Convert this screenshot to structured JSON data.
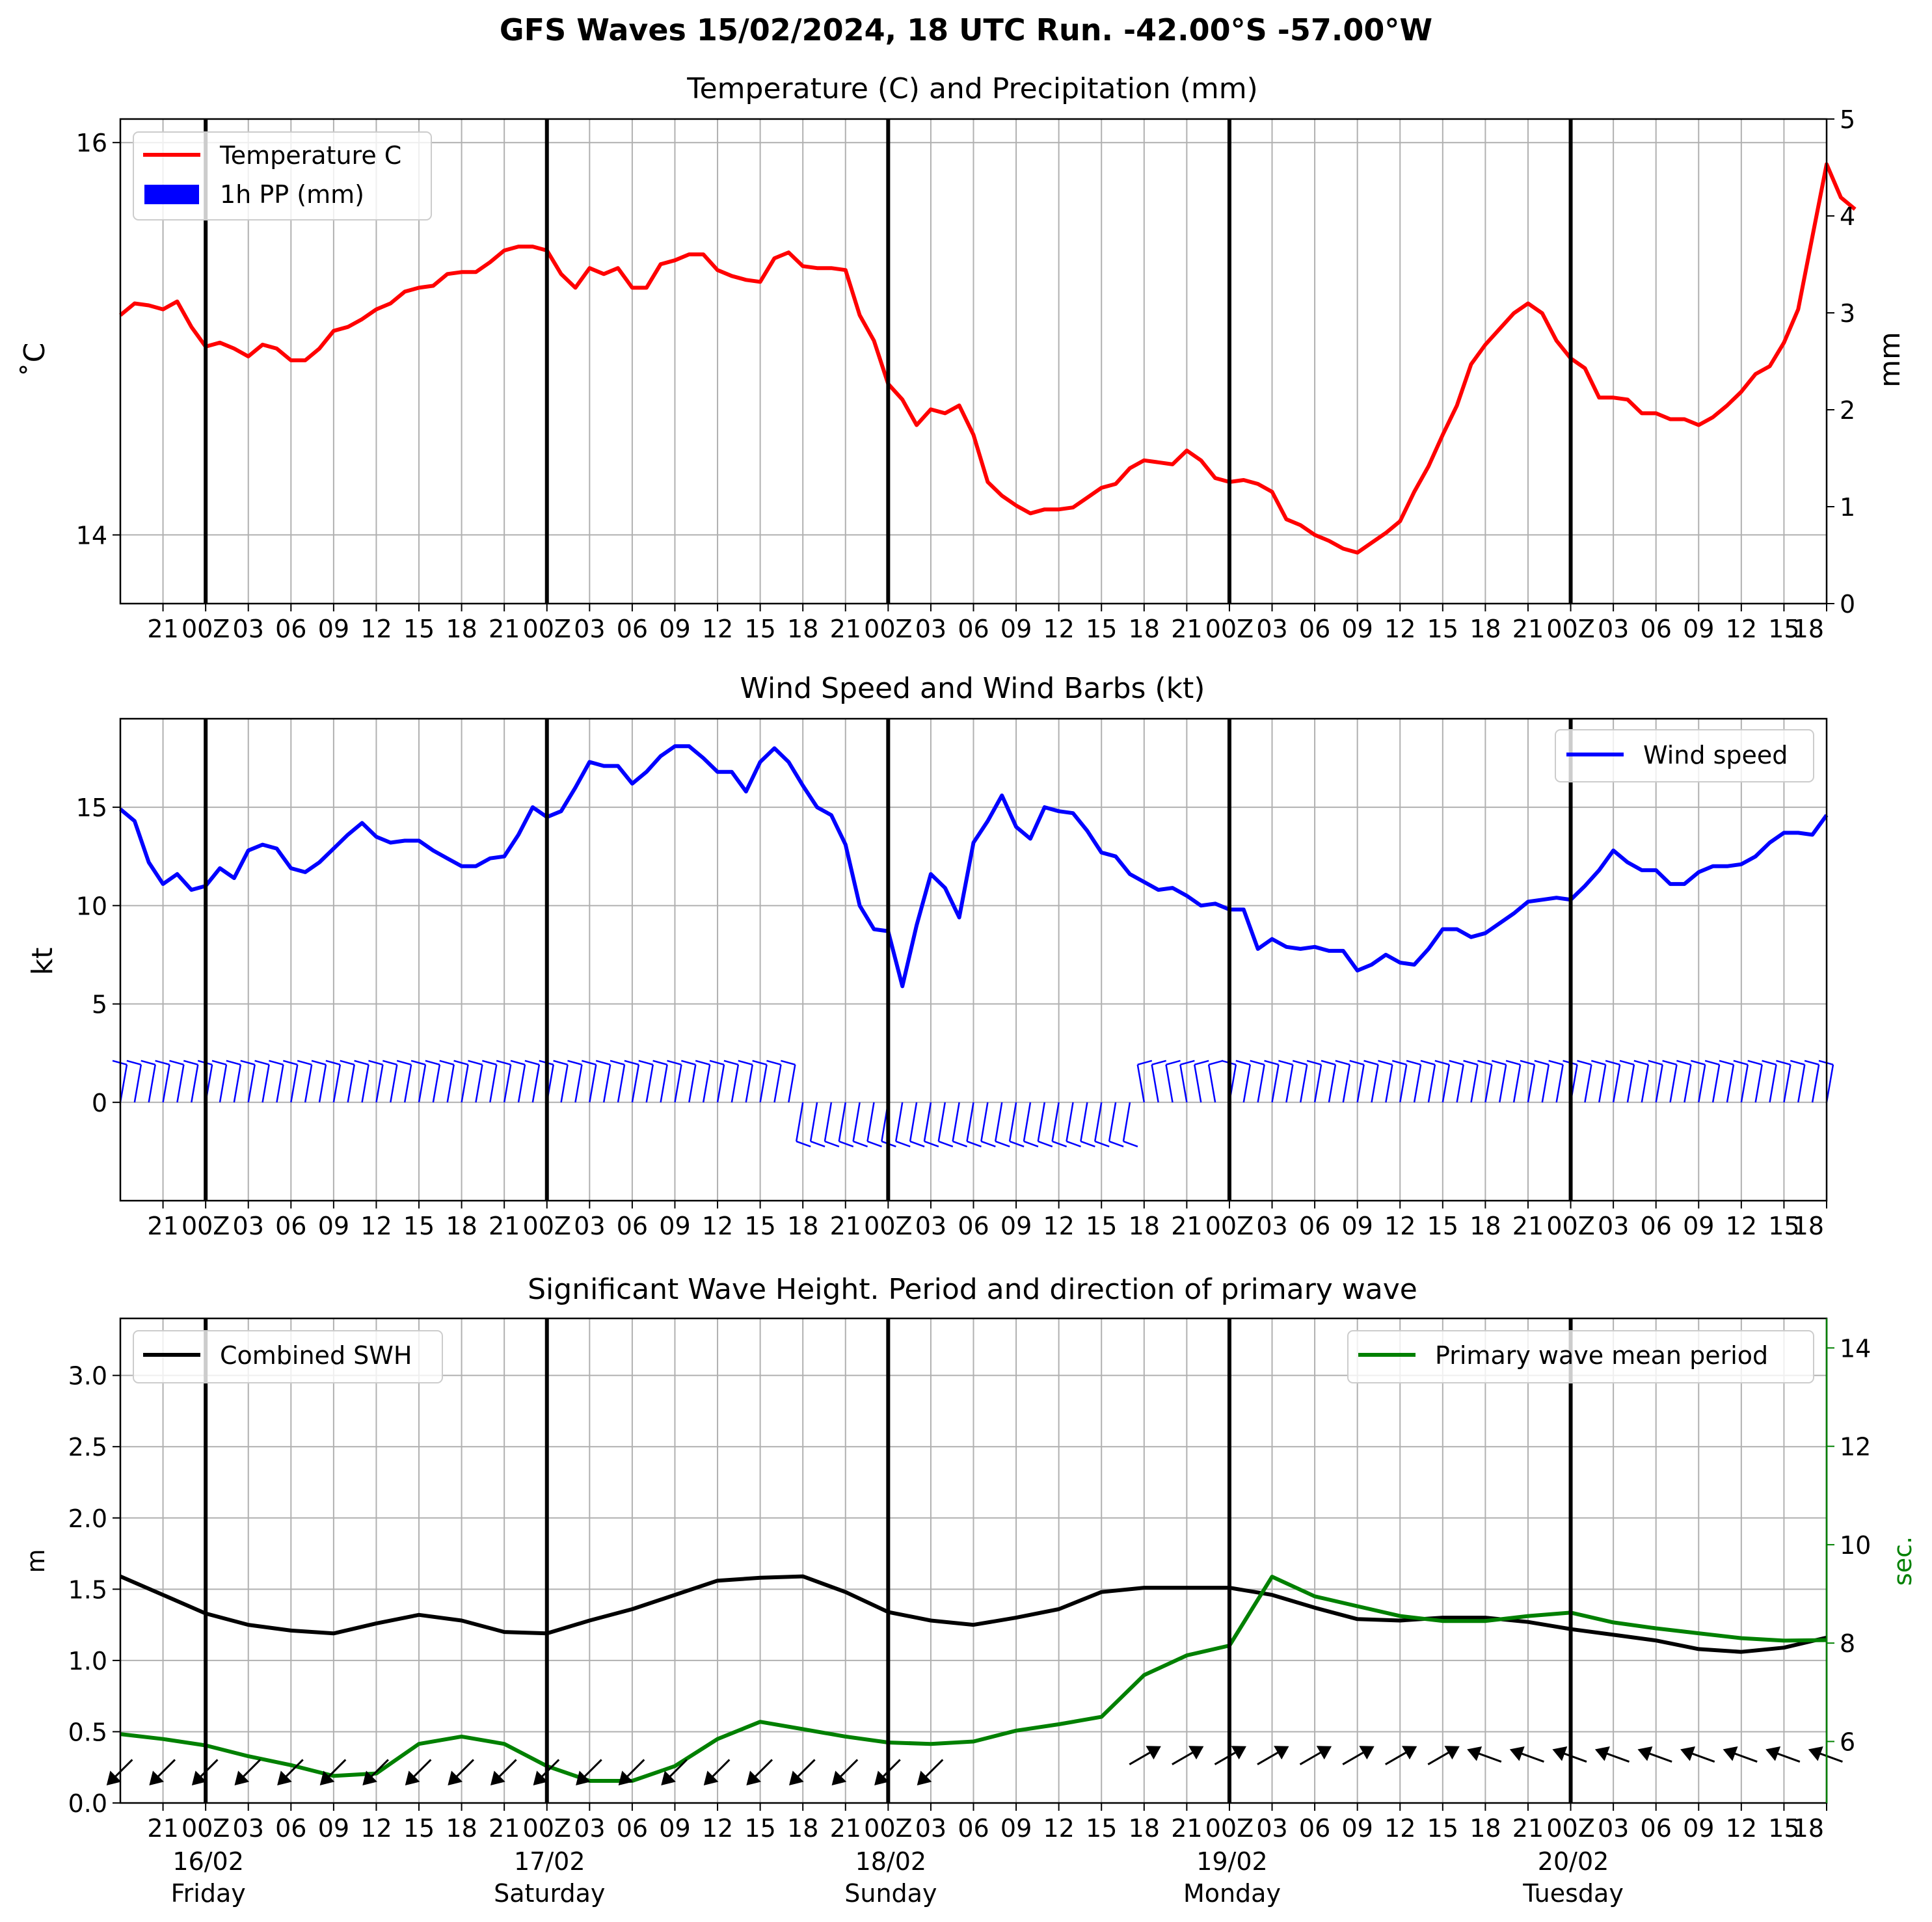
{
  "suptitle": "GFS Waves 15/02/2024, 18 UTC Run. -42.00°S -57.00°W",
  "x_tick_labels": [
    "21",
    "00Z",
    "03",
    "06",
    "09",
    "12",
    "15",
    "18",
    "21",
    "00Z",
    "03",
    "06",
    "09",
    "12",
    "15",
    "18",
    "21",
    "00Z",
    "03",
    "06",
    "09",
    "12",
    "15",
    "18",
    "21",
    "00Z",
    "03",
    "06",
    "09",
    "12",
    "15",
    "18",
    "21",
    "00Z",
    "03",
    "06",
    "09",
    "12",
    "15",
    "18"
  ],
  "day_labels": [
    {
      "date": "16/02",
      "weekday": "Friday"
    },
    {
      "date": "17/02",
      "weekday": "Saturday"
    },
    {
      "date": "18/02",
      "weekday": "Sunday"
    },
    {
      "date": "19/02",
      "weekday": "Monday"
    },
    {
      "date": "20/02",
      "weekday": "Tuesday"
    }
  ],
  "colors": {
    "temperature": "#ff0000",
    "precip": "#0000ff",
    "wind": "#0000ff",
    "swh": "#000000",
    "period": "#008000",
    "grid": "#b0b0b0"
  },
  "chart_data": [
    {
      "type": "line",
      "title": "Temperature (C) and Precipitation (mm)",
      "ylabel": "˚C",
      "ylabel_right": "mm",
      "x_range": [
        "15/02 18:00",
        "20/02 18:00"
      ],
      "time_step_hours": 1,
      "ylim": [
        13.65,
        16.12
      ],
      "ylim_right": [
        0,
        5
      ],
      "yticks": [
        "14",
        "16"
      ],
      "yticks_right": [
        "0",
        "1",
        "2",
        "3",
        "4",
        "5"
      ],
      "grid": true,
      "legend": "top-left",
      "series": [
        {
          "name": "Temperature C",
          "values": [
            15.12,
            15.18,
            15.17,
            15.15,
            15.19,
            15.06,
            14.96,
            14.98,
            14.95,
            14.91,
            14.97,
            14.95,
            14.89,
            14.89,
            14.95,
            15.04,
            15.06,
            15.1,
            15.15,
            15.18,
            15.24,
            15.26,
            15.27,
            15.33,
            15.34,
            15.34,
            15.39,
            15.45,
            15.47,
            15.47,
            15.45,
            15.33,
            15.26,
            15.36,
            15.33,
            15.36,
            15.26,
            15.26,
            15.38,
            15.4,
            15.43,
            15.43,
            15.35,
            15.32,
            15.3,
            15.29,
            15.41,
            15.44,
            15.37,
            15.36,
            15.36,
            15.35,
            15.12,
            14.99,
            14.77,
            14.69,
            14.56,
            14.64,
            14.62,
            14.66,
            14.51,
            14.27,
            14.2,
            14.15,
            14.11,
            14.13,
            14.13,
            14.14,
            14.19,
            14.24,
            14.26,
            14.34,
            14.38,
            14.37,
            14.36,
            14.43,
            14.38,
            14.29,
            14.27,
            14.28,
            14.26,
            14.22,
            14.08,
            14.05,
            14.0,
            13.97,
            13.93,
            13.91,
            13.96,
            14.01,
            14.07,
            14.22,
            14.35,
            14.51,
            14.66,
            14.87,
            14.97,
            15.05,
            15.13,
            15.18,
            15.13,
            14.99,
            14.9,
            14.85,
            14.7,
            14.7,
            14.69,
            14.62,
            14.62,
            14.59,
            14.59,
            14.56,
            14.6,
            14.66,
            14.73,
            14.82,
            14.86,
            14.98,
            15.15,
            15.52,
            15.89,
            15.72,
            15.66
          ]
        },
        {
          "name": "1h PP (mm)",
          "values": []
        }
      ]
    },
    {
      "type": "line",
      "title": "Wind Speed and Wind Barbs (kt)",
      "ylabel": "kt",
      "x_range": [
        "15/02 18:00",
        "20/02 18:00"
      ],
      "time_step_hours": 1,
      "ylim": [
        -5,
        19.5
      ],
      "yticks": [
        "0",
        "5",
        "10",
        "15"
      ],
      "grid": true,
      "legend": "top-right",
      "series": [
        {
          "name": "Wind speed",
          "values": [
            14.9,
            14.3,
            12.2,
            11.1,
            11.6,
            10.8,
            11.0,
            11.9,
            11.4,
            12.8,
            13.1,
            12.9,
            11.9,
            11.7,
            12.2,
            12.9,
            13.6,
            14.2,
            13.5,
            13.2,
            13.3,
            13.3,
            12.8,
            12.4,
            12.0,
            12.0,
            12.4,
            12.5,
            13.6,
            15.0,
            14.5,
            14.8,
            16.0,
            17.3,
            17.1,
            17.1,
            16.2,
            16.8,
            17.6,
            18.1,
            18.1,
            17.5,
            16.8,
            16.8,
            15.8,
            17.3,
            18.0,
            17.3,
            16.1,
            15.0,
            14.6,
            13.1,
            10.0,
            8.8,
            8.7,
            5.9,
            9.0,
            11.6,
            10.9,
            9.4,
            13.2,
            14.3,
            15.6,
            14.0,
            13.4,
            15.0,
            14.8,
            14.7,
            13.8,
            12.7,
            12.5,
            11.6,
            11.2,
            10.8,
            10.9,
            10.5,
            10.0,
            10.1,
            9.8,
            9.8,
            7.8,
            8.3,
            7.9,
            7.8,
            7.9,
            7.7,
            7.7,
            6.7,
            7.0,
            7.5,
            7.1,
            7.0,
            7.8,
            8.8,
            8.8,
            8.4,
            8.6,
            9.1,
            9.6,
            10.2,
            10.3,
            10.4,
            10.3,
            11.0,
            11.8,
            12.8,
            12.2,
            11.8,
            11.8,
            11.1,
            11.1,
            11.7,
            12.0,
            12.0,
            12.1,
            12.5,
            13.2,
            13.7,
            13.7,
            13.6,
            14.6
          ]
        }
      ],
      "barbs": {
        "u_sign_by_segment": [
          "westerly until 18/02 00Z, easterly 18/02 00Z–19/02 06Z, westerly after"
        ],
        "v_sign_by_segment": [
          "positive before 18/02 00Z, negative 18/02 00Z–19/02 00Z, positive after"
        ]
      }
    },
    {
      "type": "line",
      "title": "Significant Wave Height. Period and direction of primary wave",
      "ylabel": "m",
      "ylabel_right": "sec.",
      "x_range": [
        "15/02 18:00",
        "20/02 18:00"
      ],
      "time_step_hours": 3,
      "ylim": [
        0,
        3.4
      ],
      "ylim_right": [
        4.75,
        14.6
      ],
      "yticks": [
        "0.0",
        "0.5",
        "1.0",
        "1.5",
        "2.0",
        "2.5",
        "3.0"
      ],
      "yticks_right": [
        "6",
        "8",
        "10",
        "12",
        "14"
      ],
      "grid": true,
      "legend": "top-left / top-right",
      "series": [
        {
          "name": "Combined SWH",
          "axis": "left",
          "values": [
            1.59,
            1.46,
            1.33,
            1.25,
            1.21,
            1.19,
            1.26,
            1.32,
            1.28,
            1.2,
            1.19,
            1.28,
            1.36,
            1.46,
            1.56,
            1.58,
            1.59,
            1.48,
            1.34,
            1.28,
            1.25,
            1.3,
            1.36,
            1.48,
            1.51,
            1.51,
            1.51,
            1.46,
            1.37,
            1.29,
            1.28,
            1.3,
            1.3,
            1.27,
            1.22,
            1.18,
            1.14,
            1.08,
            1.06,
            1.09,
            1.16
          ]
        },
        {
          "name": "Primary wave mean period",
          "axis": "right",
          "values": [
            6.15,
            6.05,
            5.92,
            5.7,
            5.52,
            5.3,
            5.35,
            5.95,
            6.1,
            5.95,
            5.5,
            5.2,
            5.2,
            5.5,
            6.05,
            6.4,
            6.25,
            6.1,
            5.98,
            5.95,
            6.0,
            6.22,
            6.35,
            6.5,
            7.35,
            7.75,
            7.95,
            9.35,
            8.95,
            8.75,
            8.55,
            8.45,
            8.45,
            8.55,
            8.62,
            8.42,
            8.3,
            8.2,
            8.1,
            8.05,
            8.06
          ]
        }
      ],
      "primary_wave_direction": [
        "from north-east (arrows point south-west) until 18/02 09Z",
        "from south-west (arrows point north-east) 18/02 18Z–19/02 18Z",
        "from south-east (arrows point north-west) after 19/02 18Z"
      ]
    }
  ]
}
